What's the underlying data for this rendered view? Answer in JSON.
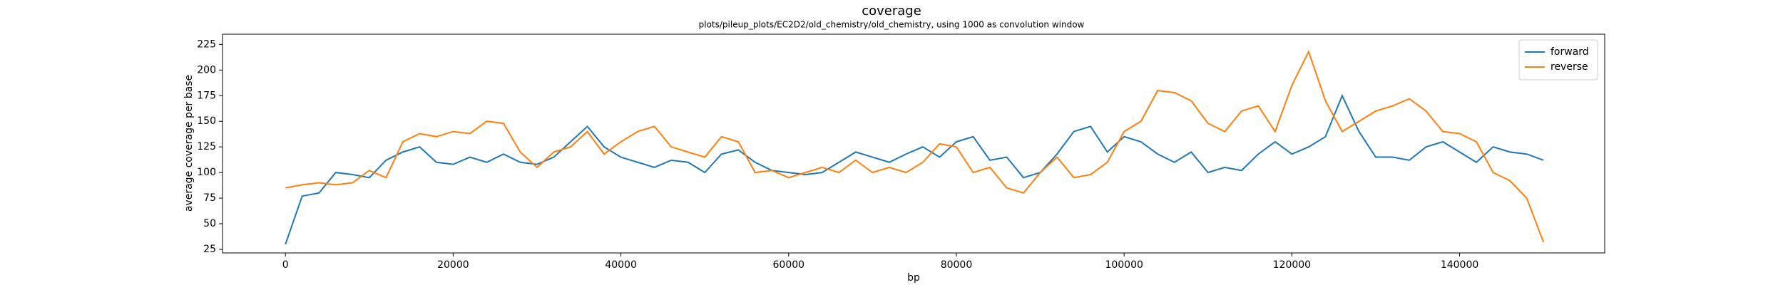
{
  "chart_data": {
    "type": "line",
    "title": "coverage",
    "subtitle": "plots/pileup_plots/EC2D2/old_chemistry/old_chemistry, using 1000 as convolution window",
    "x_label": "bp",
    "y_label": "average coverage per base",
    "x": [
      0,
      2000,
      4000,
      6000,
      8000,
      10000,
      12000,
      14000,
      16000,
      18000,
      20000,
      22000,
      24000,
      26000,
      28000,
      30000,
      32000,
      34000,
      36000,
      38000,
      40000,
      42000,
      44000,
      46000,
      48000,
      50000,
      52000,
      54000,
      56000,
      58000,
      60000,
      62000,
      64000,
      66000,
      68000,
      70000,
      72000,
      74000,
      76000,
      78000,
      80000,
      82000,
      84000,
      86000,
      88000,
      90000,
      92000,
      94000,
      96000,
      98000,
      100000,
      102000,
      104000,
      106000,
      108000,
      110000,
      112000,
      114000,
      116000,
      118000,
      120000,
      122000,
      124000,
      126000,
      128000,
      130000,
      132000,
      134000,
      136000,
      138000,
      140000,
      142000,
      144000,
      146000,
      148000,
      150000
    ],
    "series": [
      {
        "name": "forward",
        "color": "#1f77b4",
        "values": [
          30,
          77,
          80,
          100,
          98,
          95,
          112,
          120,
          125,
          110,
          108,
          115,
          110,
          118,
          110,
          108,
          115,
          130,
          145,
          125,
          115,
          110,
          105,
          112,
          110,
          100,
          118,
          122,
          110,
          102,
          100,
          98,
          100,
          110,
          120,
          115,
          110,
          118,
          125,
          115,
          130,
          135,
          112,
          115,
          95,
          100,
          118,
          140,
          145,
          120,
          135,
          130,
          118,
          110,
          120,
          100,
          105,
          102,
          118,
          130,
          118,
          125,
          135,
          175,
          140,
          115,
          115,
          112,
          125,
          130,
          120,
          110,
          125,
          120,
          118,
          112
        ]
      },
      {
        "name": "reverse",
        "color": "#ff7f0e",
        "values": [
          85,
          88,
          90,
          88,
          90,
          102,
          95,
          130,
          138,
          135,
          140,
          138,
          150,
          148,
          120,
          105,
          120,
          125,
          140,
          118,
          130,
          140,
          145,
          125,
          120,
          115,
          135,
          130,
          100,
          102,
          95,
          100,
          105,
          100,
          112,
          100,
          105,
          100,
          110,
          128,
          125,
          100,
          105,
          85,
          80,
          100,
          115,
          95,
          98,
          110,
          140,
          150,
          180,
          178,
          170,
          148,
          140,
          160,
          165,
          140,
          185,
          218,
          170,
          140,
          150,
          160,
          165,
          172,
          160,
          140,
          138,
          130,
          100,
          92,
          75,
          32
        ]
      }
    ],
    "xlim": [
      -7500,
      157300
    ],
    "ylim": [
      21.5,
      235
    ],
    "xticks": [
      0,
      20000,
      40000,
      60000,
      80000,
      100000,
      120000,
      140000
    ],
    "yticks": [
      25,
      50,
      75,
      100,
      125,
      150,
      175,
      200,
      225
    ],
    "legend": "upper right"
  }
}
